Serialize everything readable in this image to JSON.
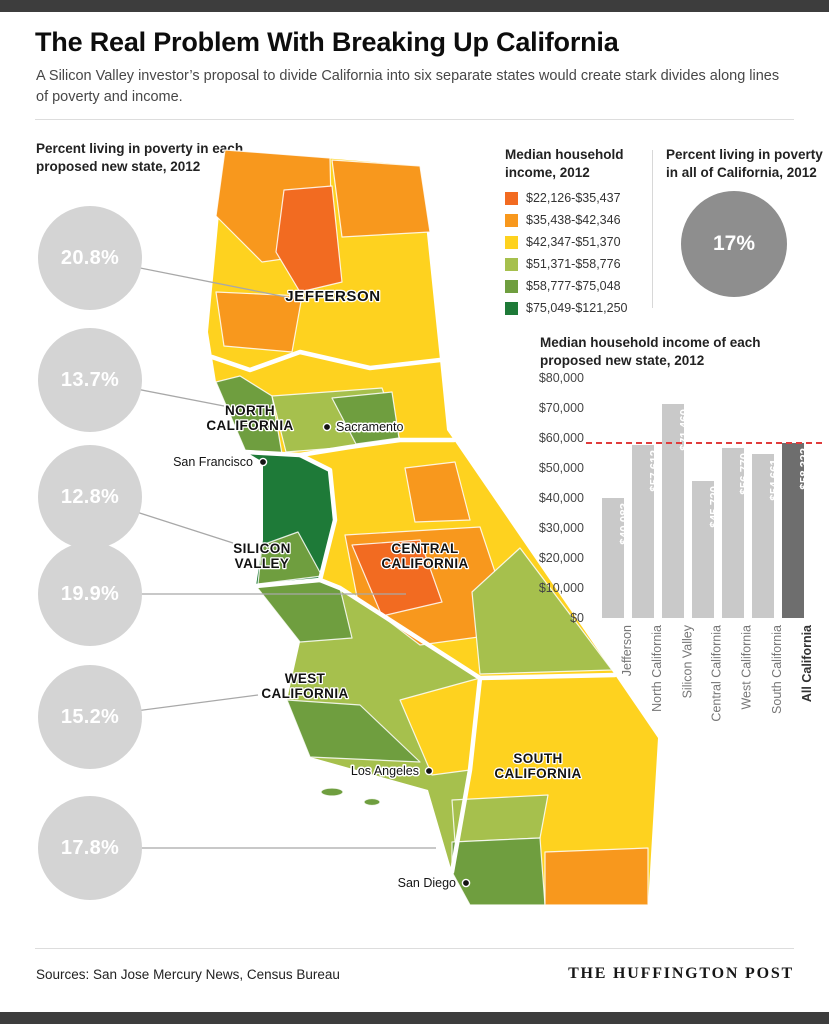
{
  "header": {
    "title": "The Real Problem With Breaking Up California",
    "subtitle": "A Silicon Valley investor’s proposal to divide California into six separate states would create stark divides along lines of poverty and income."
  },
  "poverty_section": {
    "heading": "Percent living in poverty in each proposed new state, 2012"
  },
  "legend": {
    "heading": "Median household income, 2012",
    "items": [
      {
        "label": "$22,126-$35,437",
        "color": "#f26b21"
      },
      {
        "label": "$35,438-$42,346",
        "color": "#f8981d"
      },
      {
        "label": "$42,347-$51,370",
        "color": "#fed21f"
      },
      {
        "label": "$51,371-$58,776",
        "color": "#a6c04d"
      },
      {
        "label": "$58,777-$75,048",
        "color": "#6f9e3f"
      },
      {
        "label": "$75,049-$121,250",
        "color": "#1e7a38"
      }
    ]
  },
  "california_poverty": {
    "heading": "Percent living in poverty in all of California, 2012",
    "value_label": "17%",
    "circle_color": "#8e8e8e"
  },
  "map": {
    "regions": [
      {
        "name": "Jefferson",
        "lines": [
          "JEFFERSON"
        ]
      },
      {
        "name": "North California",
        "lines": [
          "NORTH",
          "CALIFORNIA"
        ]
      },
      {
        "name": "Silicon Valley",
        "lines": [
          "SILICON",
          "VALLEY"
        ]
      },
      {
        "name": "Central California",
        "lines": [
          "CENTRAL",
          "CALIFORNIA"
        ]
      },
      {
        "name": "West California",
        "lines": [
          "WEST",
          "CALIFORNIA"
        ]
      },
      {
        "name": "South California",
        "lines": [
          "SOUTH",
          "CALIFORNIA"
        ]
      }
    ],
    "cities": [
      {
        "name": "Sacramento"
      },
      {
        "name": "San Francisco"
      },
      {
        "name": "Los Angeles"
      },
      {
        "name": "San Diego"
      }
    ]
  },
  "chart_data": [
    {
      "type": "bar",
      "title": "Median household income of each proposed new state, 2012",
      "categories": [
        "Jefferson",
        "North California",
        "Silicon Valley",
        "Central California",
        "West California",
        "South California",
        "All California"
      ],
      "values": [
        40083,
        57612,
        71460,
        45720,
        56770,
        54661,
        58322
      ],
      "value_labels": [
        "$40,083",
        "$57,612",
        "$71,460",
        "$45,720",
        "$56,770",
        "$54,661",
        "$58,322"
      ],
      "ylim": [
        0,
        80000
      ],
      "yticks": [
        80000,
        70000,
        60000,
        50000,
        40000,
        30000,
        20000,
        10000,
        0
      ],
      "ytick_labels": [
        "$80,000",
        "$70,000",
        "$60,000",
        "$50,000",
        "$40,000",
        "$30,000",
        "$20,000",
        "$10,000",
        "$0"
      ],
      "highlight_index": 6,
      "bar_color": "#c9c9c9",
      "highlight_color": "#6e6e6e",
      "reference_line": {
        "value": 58322,
        "color": "#e03c3c",
        "style": "dashed"
      },
      "grid": false,
      "legend_position": "none"
    },
    {
      "type": "other",
      "subtype": "proportional-circles",
      "title": "Percent living in poverty in each proposed new state, 2012",
      "circle_color": "#d4d4d4",
      "points": [
        {
          "state": "Jefferson",
          "value": 20.8,
          "label": "20.8%"
        },
        {
          "state": "North California",
          "value": 13.7,
          "label": "13.7%"
        },
        {
          "state": "Silicon Valley",
          "value": 12.8,
          "label": "12.8%"
        },
        {
          "state": "Central California",
          "value": 19.9,
          "label": "19.9%"
        },
        {
          "state": "West California",
          "value": 15.2,
          "label": "15.2%"
        },
        {
          "state": "South California",
          "value": 17.8,
          "label": "17.8%"
        }
      ]
    }
  ],
  "footer": {
    "sources": "Sources: San Jose Mercury News, Census Bureau",
    "brand": "THE HUFFINGTON POST"
  }
}
